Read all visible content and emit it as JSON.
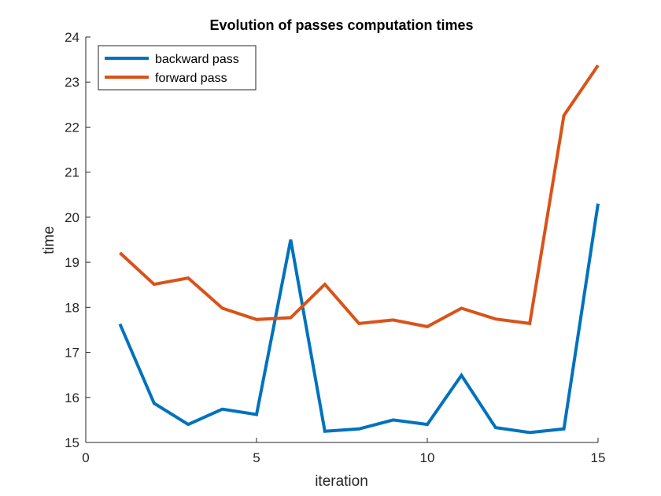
{
  "chart_data": {
    "type": "line",
    "title": "Evolution of passes computation times",
    "xlabel": "iteration",
    "ylabel": "time",
    "xlim": [
      0,
      15
    ],
    "ylim": [
      15,
      24
    ],
    "xticks": [
      0,
      5,
      10,
      15
    ],
    "yticks": [
      15,
      16,
      17,
      18,
      19,
      20,
      21,
      22,
      23,
      24
    ],
    "grid": false,
    "legend_position": "top-left",
    "x": [
      1,
      2,
      3,
      4,
      5,
      6,
      7,
      8,
      9,
      10,
      11,
      12,
      13,
      14,
      15
    ],
    "series": [
      {
        "name": "backward pass",
        "color": "#0072BD",
        "values": [
          17.63,
          15.87,
          15.4,
          15.74,
          15.62,
          19.5,
          15.25,
          15.3,
          15.5,
          15.4,
          16.49,
          15.33,
          15.22,
          15.3,
          20.3
        ]
      },
      {
        "name": "forward pass",
        "color": "#D95319",
        "values": [
          19.21,
          18.51,
          18.65,
          17.98,
          17.73,
          17.77,
          18.51,
          17.64,
          17.72,
          17.57,
          17.98,
          17.74,
          17.64,
          22.26,
          23.37
        ]
      }
    ]
  }
}
